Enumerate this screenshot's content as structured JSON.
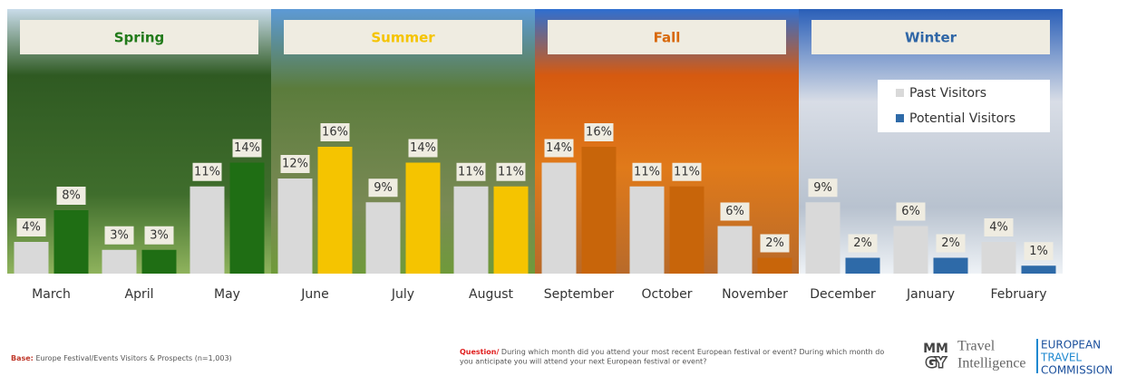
{
  "chart_data": {
    "type": "bar",
    "categories": [
      "March",
      "April",
      "May",
      "June",
      "July",
      "August",
      "September",
      "October",
      "November",
      "December",
      "January",
      "February"
    ],
    "seasons": [
      {
        "name": "Spring",
        "color": "#217a1a"
      },
      {
        "name": "Summer",
        "color": "#f5c400"
      },
      {
        "name": "Fall",
        "color": "#d8680a"
      },
      {
        "name": "Winter",
        "color": "#2f66a6"
      }
    ],
    "series": [
      {
        "name": "Past Visitors",
        "color": "#d9d9d9",
        "values": [
          4,
          3,
          11,
          12,
          9,
          11,
          14,
          11,
          6,
          9,
          6,
          4
        ],
        "value_labels": [
          "4%",
          "3%",
          "11%",
          "12%",
          "9%",
          "11%",
          "14%",
          "11%",
          "6%",
          "9%",
          "6%",
          "4%"
        ]
      },
      {
        "name": "Potential Visitors",
        "color": "#2e6aa8",
        "colors": [
          "#1f6e14",
          "#1f6e14",
          "#1f6e14",
          "#f5c400",
          "#f5c400",
          "#f5c400",
          "#c8650a",
          "#c8650a",
          "#c8650a",
          "#2e6aa8",
          "#2e6aa8",
          "#2e6aa8"
        ],
        "values": [
          8,
          3,
          14,
          16,
          14,
          11,
          16,
          11,
          2,
          2,
          2,
          1
        ],
        "value_labels": [
          "8%",
          "3%",
          "14%",
          "16%",
          "14%",
          "11%",
          "16%",
          "11%",
          "2%",
          "2%",
          "2%",
          "1%"
        ]
      }
    ],
    "ylim": [
      0,
      16
    ],
    "legend": "upper-right"
  },
  "footer": {
    "base_label": "Base:",
    "base": "Europe Festival/Events Visitors & Prospects (n=1,003)",
    "question_label": "Question/",
    "question_line1": "During which month did you attend your most recent European festival or event? During which month do",
    "question_line2": "you anticipate you will attend your next European festival or event?"
  },
  "logos": {
    "mmgy_top": "MM",
    "mmgy_bottom": "GY",
    "travel": "Travel",
    "intelligence": "Intelligence",
    "etc": [
      "EUROPEAN",
      "TRAVEL",
      "COMMISSION"
    ]
  }
}
